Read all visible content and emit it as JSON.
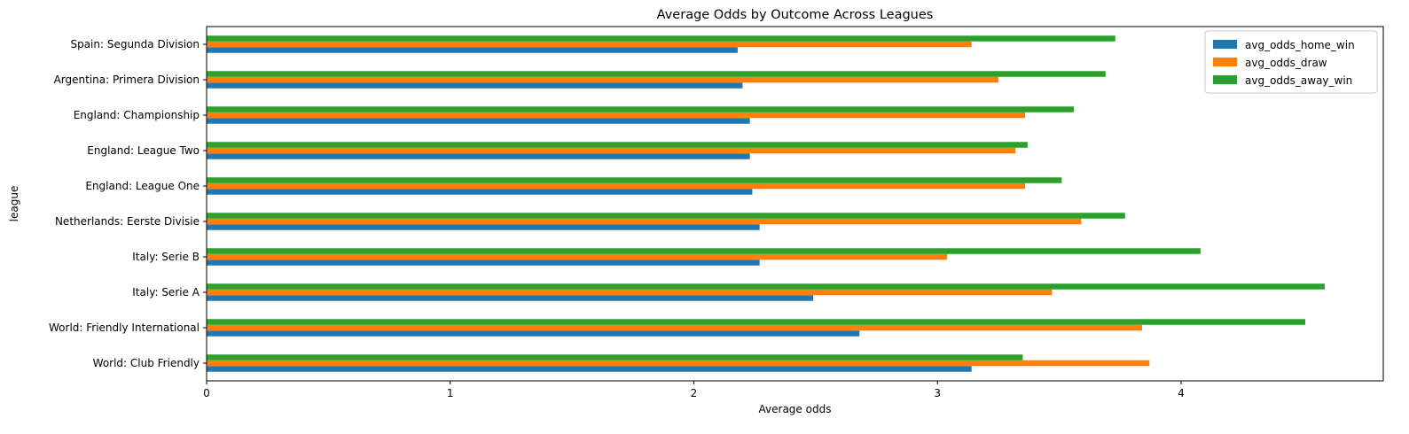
{
  "chart_data": {
    "type": "bar",
    "orientation": "horizontal",
    "title": "Average Odds by Outcome Across Leagues",
    "xlabel": "Average odds",
    "ylabel": "league",
    "xlim": [
      0,
      4.83
    ],
    "xticks": [
      "0",
      "1",
      "2",
      "3",
      "4"
    ],
    "grid": false,
    "legend_position": "top-right",
    "categories": [
      "World: Club Friendly",
      "World: Friendly International",
      "Italy: Serie A",
      "Italy: Serie B",
      "Netherlands: Eerste Divisie",
      "England: League One",
      "England: League Two",
      "England: Championship",
      "Argentina: Primera Division",
      "Spain: Segunda Division"
    ],
    "series": [
      {
        "name": "avg_odds_home_win",
        "color": "#1f77b4",
        "values": [
          3.14,
          2.68,
          2.49,
          2.27,
          2.27,
          2.24,
          2.23,
          2.23,
          2.2,
          2.18
        ]
      },
      {
        "name": "avg_odds_draw",
        "color": "#ff7f0e",
        "values": [
          3.87,
          3.84,
          3.47,
          3.04,
          3.59,
          3.36,
          3.32,
          3.36,
          3.25,
          3.14
        ]
      },
      {
        "name": "avg_odds_away_win",
        "color": "#2ca02c",
        "values": [
          3.35,
          4.51,
          4.59,
          4.08,
          3.77,
          3.51,
          3.37,
          3.56,
          3.69,
          3.73
        ]
      }
    ]
  }
}
